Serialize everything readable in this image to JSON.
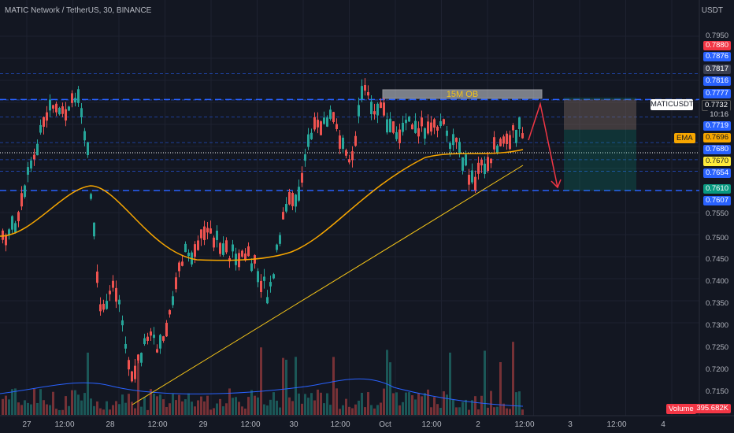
{
  "header": {
    "symbol_line": "MATIC Network / TetherUS, 30, BINANCE"
  },
  "price_axis": {
    "unit": "USDT",
    "ticks": [
      "0.7950",
      "0.7550",
      "0.7500",
      "0.7450",
      "0.7400",
      "0.7350",
      "0.7300",
      "0.7250",
      "0.7200",
      "0.7150"
    ]
  },
  "price_labels": [
    {
      "text": "0.7880",
      "price": 0.788,
      "bg": "#f23645",
      "fg": "#ffffff"
    },
    {
      "text": "0.7876",
      "price": 0.7876,
      "bg": "#2962ff",
      "fg": "#ffffff"
    },
    {
      "text": "0.7817",
      "price": 0.7817,
      "bg": "#3a3f52",
      "fg": "#ffffff"
    },
    {
      "text": "0.7816",
      "price": 0.7816,
      "bg": "#2962ff",
      "fg": "#ffffff"
    },
    {
      "text": "0.7777",
      "price": 0.7777,
      "bg": "#2962ff",
      "fg": "#ffffff"
    },
    {
      "text": "0.7719",
      "price": 0.7719,
      "bg": "#2962ff",
      "fg": "#ffffff"
    },
    {
      "text": "0.7696",
      "price": 0.7696,
      "bg": "#f7a600",
      "fg": "#131722"
    },
    {
      "text": "0.7680",
      "price": 0.768,
      "bg": "#2962ff",
      "fg": "#ffffff"
    },
    {
      "text": "0.7670",
      "price": 0.767,
      "bg": "#ffeb3b",
      "fg": "#131722"
    },
    {
      "text": "0.7654",
      "price": 0.7654,
      "bg": "#2962ff",
      "fg": "#ffffff"
    },
    {
      "text": "0.7610",
      "price": 0.761,
      "bg": "#089981",
      "fg": "#ffffff"
    },
    {
      "text": "0.7607",
      "price": 0.7607,
      "bg": "#2962ff",
      "fg": "#ffffff"
    }
  ],
  "current_price": {
    "symbol": "MATICUSDT",
    "price_text": "0.7732",
    "countdown": "10:16"
  },
  "ema_tag": "EMA",
  "volume_label": {
    "name": "Volume",
    "value": "395.682K"
  },
  "time_axis": [
    "27",
    "12:00",
    "28",
    "12:00",
    "29",
    "12:00",
    "30",
    "12:00",
    "Oct",
    "12:00",
    "2",
    "12:00",
    "3",
    "12:00",
    "4"
  ],
  "annotation": {
    "order_block": "15M OB"
  },
  "colors": {
    "bg": "#131722",
    "up": "#26a69a",
    "down": "#ef5350",
    "ema": "#f7a600",
    "trend": "#f5c518",
    "level": "#2962ff"
  }
}
